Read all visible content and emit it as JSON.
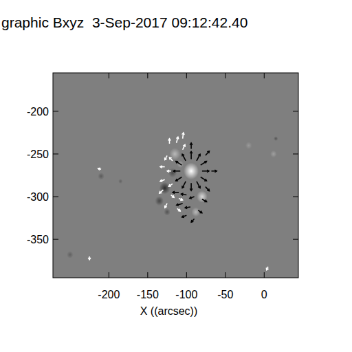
{
  "chart_data": {
    "type": "vector_field",
    "title": "graphic Bxyz  3-Sep-2017 09:12:42.40",
    "x_label": "X ((arcsec))",
    "xlim": [
      -272,
      44
    ],
    "ylim": [
      -395,
      -155
    ],
    "xticks": [
      -200,
      -150,
      -100,
      -50,
      0
    ],
    "yticks": [
      -200,
      -250,
      -300,
      -350
    ],
    "zlim": [
      -2000,
      2000
    ],
    "background": "#7f7f7f",
    "features": [
      {
        "x": -94,
        "y": -270,
        "r": 7,
        "value": 2000
      },
      {
        "x": -80,
        "y": -300,
        "r": 5,
        "value": 1400
      },
      {
        "x": -88,
        "y": -318,
        "r": 4,
        "value": 900
      },
      {
        "x": -115,
        "y": -250,
        "r": 5,
        "value": 900
      },
      {
        "x": -108,
        "y": -262,
        "r": 3,
        "value": 700
      },
      {
        "x": -128,
        "y": -290,
        "r": 5,
        "value": -1300
      },
      {
        "x": -118,
        "y": -272,
        "r": 4,
        "value": -800
      },
      {
        "x": -135,
        "y": -305,
        "r": 4,
        "value": -900
      },
      {
        "x": -125,
        "y": -318,
        "r": 3,
        "value": -700
      },
      {
        "x": -210,
        "y": -276,
        "r": 3,
        "value": -600
      },
      {
        "x": -185,
        "y": -282,
        "r": 2,
        "value": -500
      },
      {
        "x": -250,
        "y": -368,
        "r": 3,
        "value": -500
      },
      {
        "x": 12,
        "y": -250,
        "r": 3,
        "value": 500
      },
      {
        "x": -20,
        "y": -240,
        "r": 3,
        "value": 400
      },
      {
        "x": 15,
        "y": -232,
        "r": 2,
        "value": -700
      }
    ],
    "series": [
      {
        "color": "#000000",
        "x": [
          -80,
          -81.9,
          -87,
          -94,
          -101,
          -106.1,
          -108,
          -106.1,
          -101,
          -94,
          -87,
          -81.9,
          -68,
          -75.6,
          -94,
          -75.6,
          -110,
          -100,
          -90,
          -80,
          -105,
          -95,
          -85,
          -100,
          -90
        ],
        "y": [
          -270,
          -263,
          -257.9,
          -256,
          -257.9,
          -263,
          -270,
          -277,
          -282.1,
          -284,
          -282.1,
          -277,
          -270,
          -251.6,
          -244,
          -288.4,
          -295,
          -298,
          -300,
          -303,
          -308,
          -312,
          -316,
          -322,
          -326
        ],
        "u": [
          9,
          7.8,
          4.5,
          0,
          -4.5,
          -7.8,
          -9,
          -7.8,
          -4.5,
          0,
          4.5,
          7.8,
          7,
          5,
          0,
          5,
          -8,
          -7,
          -6,
          6,
          -8,
          -7,
          5,
          -6,
          -4
        ],
        "v": [
          0,
          4.5,
          7.8,
          9,
          7.8,
          4.5,
          0,
          -4.5,
          -7.8,
          -9,
          -7.8,
          -4.5,
          0,
          5,
          7,
          -5,
          0,
          1,
          -2,
          -3,
          -2,
          -1,
          -3,
          -2,
          -4
        ]
      },
      {
        "color": "#ffffff",
        "x": [
          -122,
          -113,
          -105,
          -125,
          -118,
          -128,
          -120,
          -128,
          -118,
          -130,
          -120,
          -110,
          -125,
          -112,
          -210,
          -225,
          5,
          -105
        ],
        "y": [
          -238,
          -237,
          -245,
          -252,
          -258,
          -265,
          -270,
          -280,
          -285,
          -292,
          -298,
          -302,
          -308,
          -314,
          -268,
          -370,
          -382,
          -232
        ],
        "u": [
          0,
          2,
          3,
          -3,
          -4,
          -6,
          -5,
          -6,
          -5,
          -5,
          4,
          5,
          -3,
          4,
          -4,
          0,
          -2,
          1
        ],
        "v": [
          6,
          7,
          6,
          -5,
          4,
          0,
          0,
          -2,
          -3,
          -4,
          -3,
          -2,
          -5,
          -3,
          1,
          -4,
          -4,
          7
        ]
      }
    ]
  }
}
